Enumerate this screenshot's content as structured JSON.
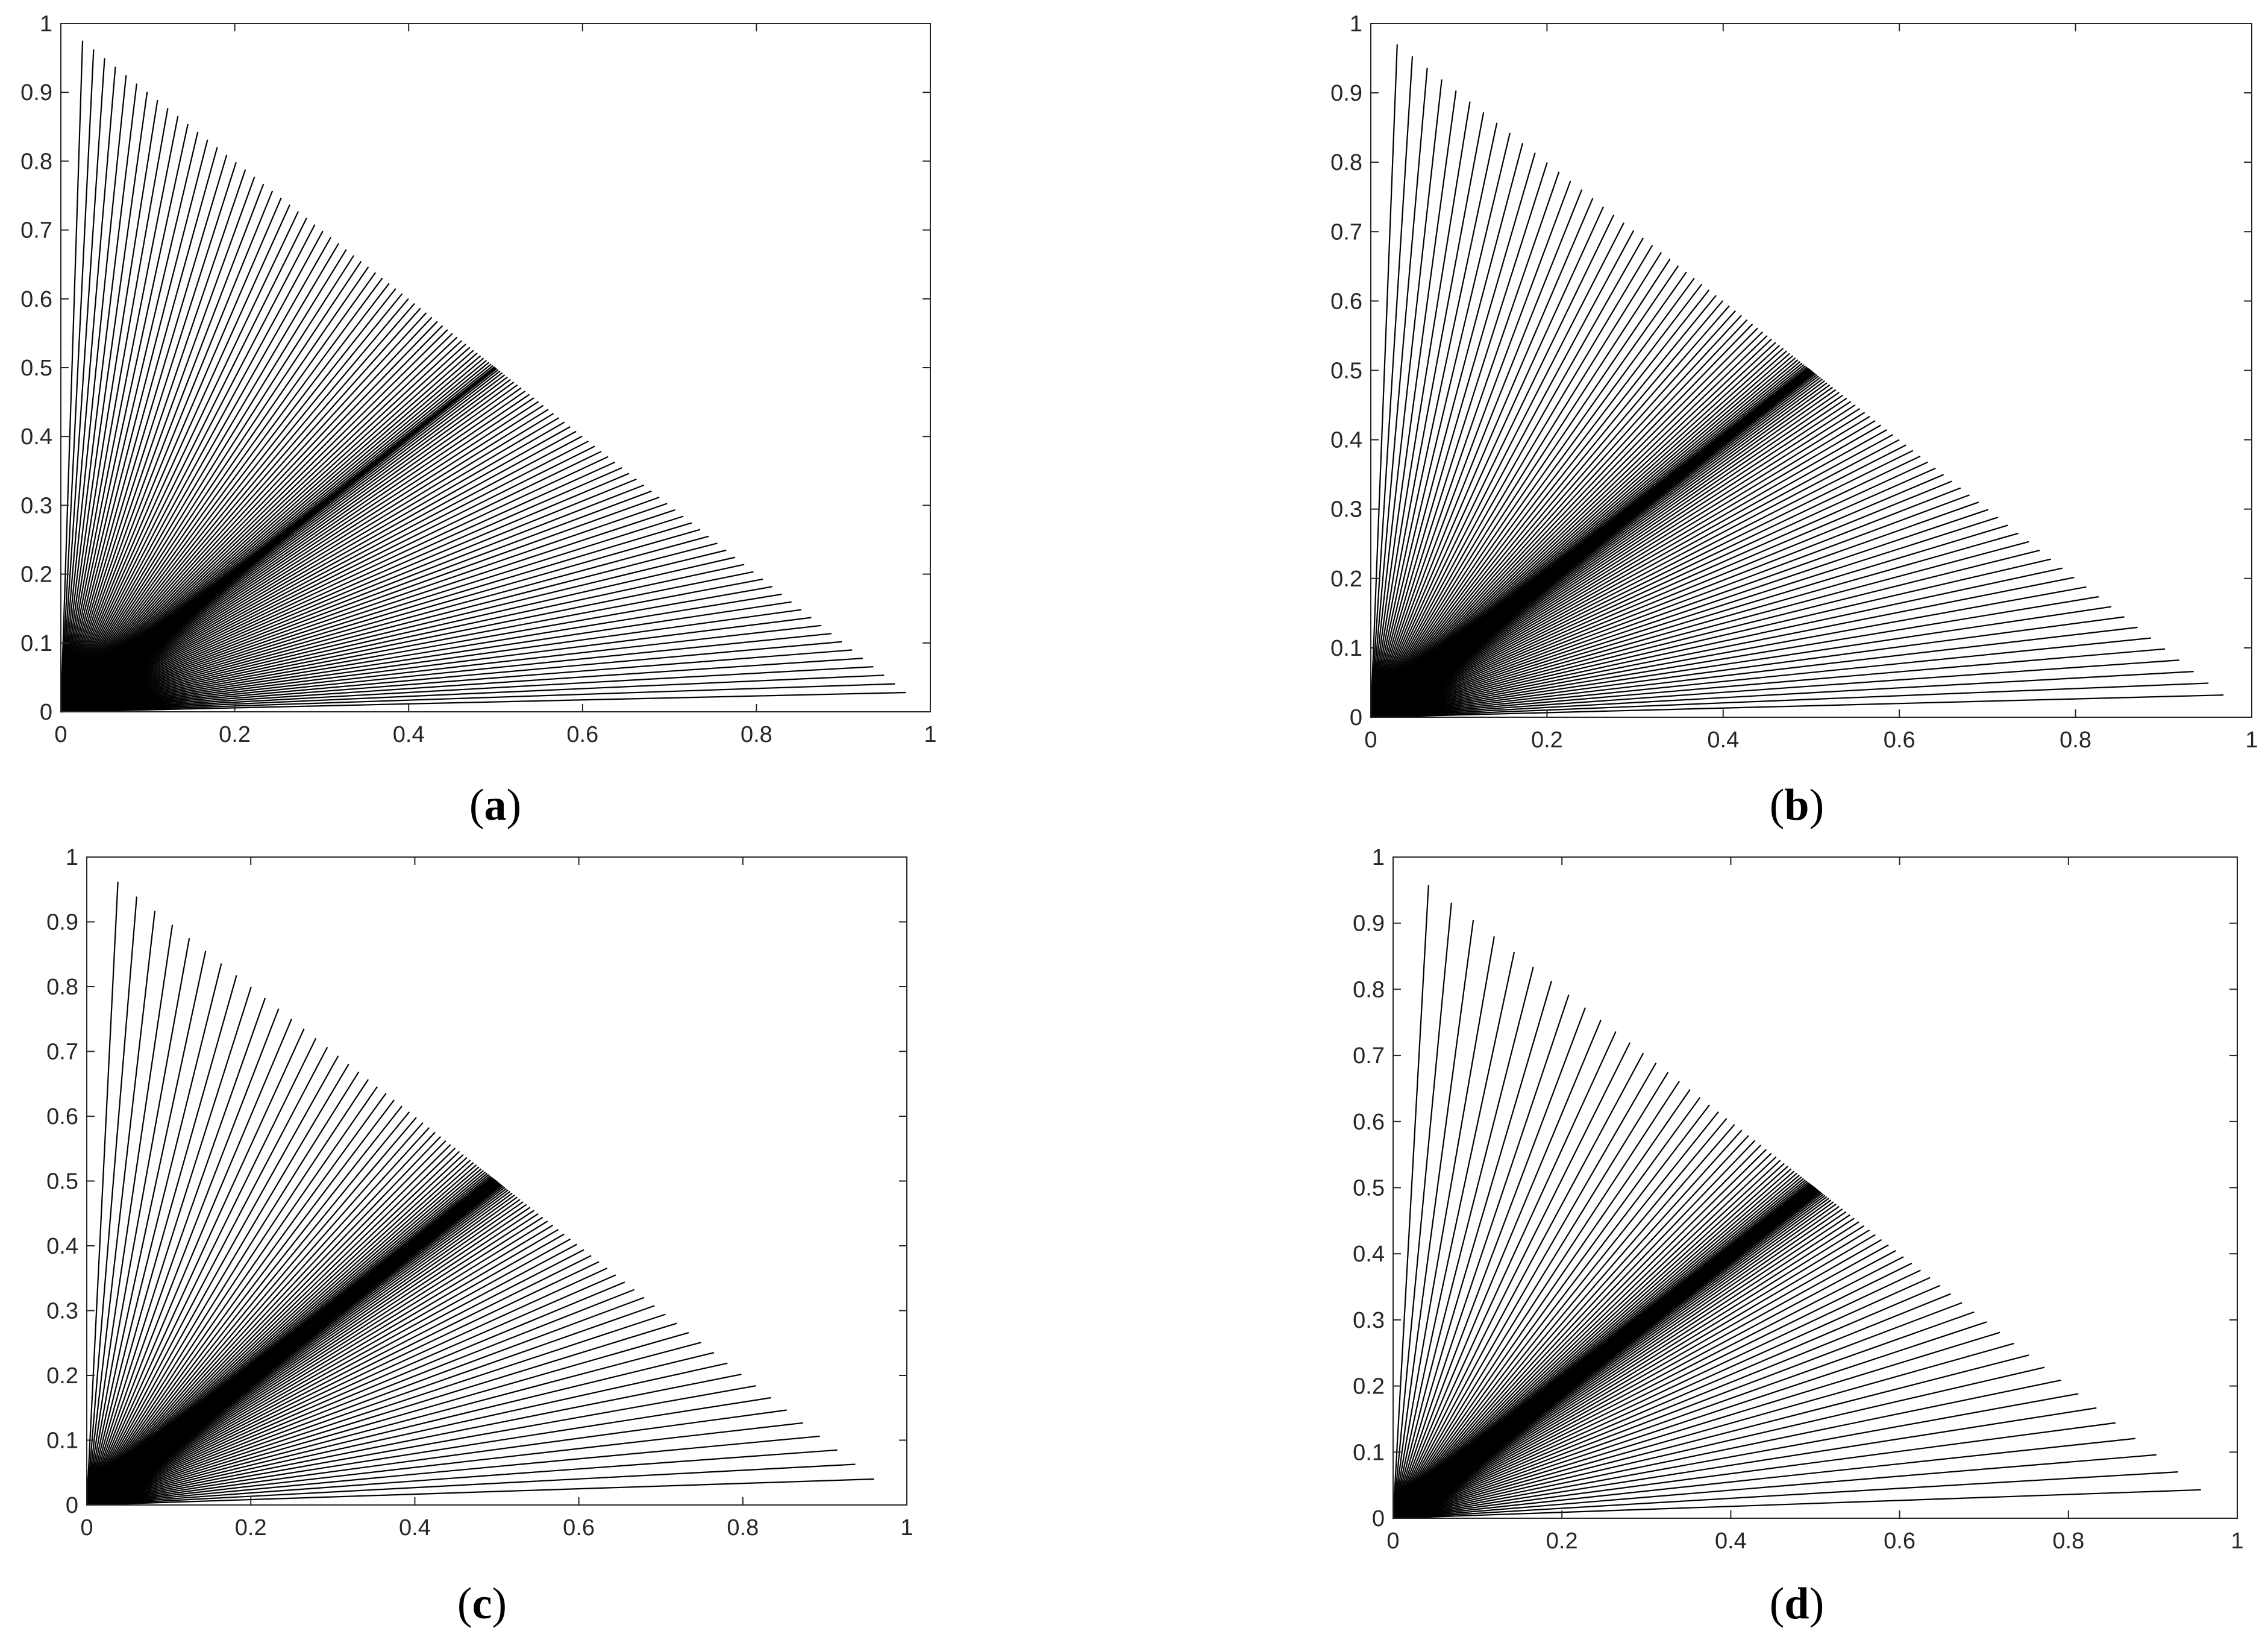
{
  "panel_labels": [
    "a",
    "b",
    "c",
    "d"
  ],
  "chart_data": [
    {
      "panel": "a",
      "type": "line",
      "description_of_marks": "fan of straight line segments from the origin to the hypotenuse x+y=1",
      "xlim": [
        0,
        1
      ],
      "ylim": [
        0,
        1
      ],
      "xticks": [
        "0",
        "0.2",
        "0.4",
        "0.6",
        "0.8",
        "1"
      ],
      "yticks": [
        "0",
        "0.1",
        "0.2",
        "0.3",
        "0.4",
        "0.5",
        "0.6",
        "0.7",
        "0.8",
        "0.9",
        "1"
      ],
      "n_segments": 120,
      "endpoint_x_start": 0.025,
      "endpoint_x_end": 0.972,
      "clustering_power": 1.6,
      "grid": false
    },
    {
      "panel": "b",
      "type": "line",
      "xlim": [
        0,
        1
      ],
      "ylim": [
        0,
        1
      ],
      "xticks": [
        "0",
        "0.2",
        "0.4",
        "0.6",
        "0.8",
        "1"
      ],
      "yticks": [
        "0",
        "0.1",
        "0.2",
        "0.3",
        "0.4",
        "0.5",
        "0.6",
        "0.7",
        "0.8",
        "0.9",
        "1"
      ],
      "n_segments": 120,
      "endpoint_x_start": 0.03,
      "endpoint_x_end": 0.968,
      "clustering_power": 2.2,
      "grid": false
    },
    {
      "panel": "c",
      "type": "line",
      "xlim": [
        0,
        1
      ],
      "ylim": [
        0,
        1
      ],
      "xticks": [
        "0",
        "0.2",
        "0.4",
        "0.6",
        "0.8",
        "1"
      ],
      "yticks": [
        "0",
        "0.1",
        "0.2",
        "0.3",
        "0.4",
        "0.5",
        "0.6",
        "0.7",
        "0.8",
        "0.9",
        "1"
      ],
      "n_segments": 120,
      "endpoint_x_start": 0.038,
      "endpoint_x_end": 0.96,
      "clustering_power": 3.0,
      "grid": false
    },
    {
      "panel": "d",
      "type": "line",
      "xlim": [
        0,
        1
      ],
      "ylim": [
        0,
        1
      ],
      "xticks": [
        "0",
        "0.2",
        "0.4",
        "0.6",
        "0.8",
        "1"
      ],
      "yticks": [
        "0",
        "0.1",
        "0.2",
        "0.3",
        "0.4",
        "0.5",
        "0.6",
        "0.7",
        "0.8",
        "0.9",
        "1"
      ],
      "n_segments": 120,
      "endpoint_x_start": 0.042,
      "endpoint_x_end": 0.957,
      "clustering_power": 3.6,
      "grid": false
    }
  ]
}
